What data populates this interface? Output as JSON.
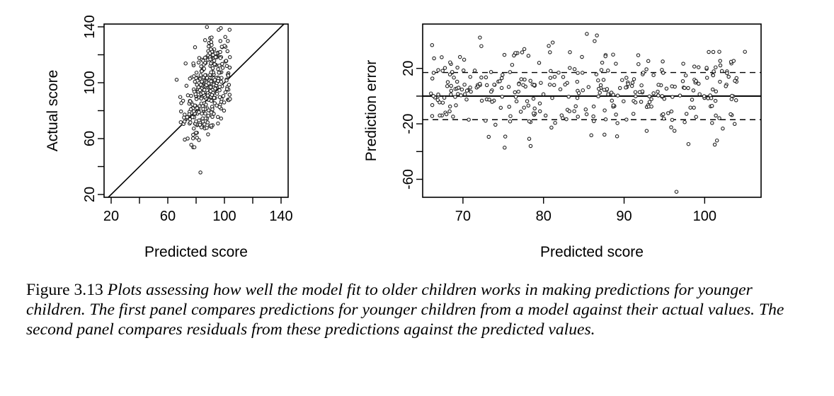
{
  "chart_data": [
    {
      "type": "scatter",
      "xlabel": "Predicted score",
      "ylabel": "Actual score",
      "xlim": [
        15,
        145
      ],
      "ylim": [
        18,
        142
      ],
      "xticks": [
        20,
        60,
        100,
        140
      ],
      "xticks_minor": [
        40,
        80,
        120
      ],
      "yticks": [
        20,
        60,
        100,
        140
      ],
      "yticks_minor": [
        40,
        80,
        120
      ],
      "reference_line": "y = x",
      "points_summary": {
        "n": 350,
        "x_range": [
          66,
          104
        ],
        "y_range": [
          25,
          140
        ],
        "center": [
          88,
          98
        ]
      }
    },
    {
      "type": "scatter",
      "xlabel": "Predicted score",
      "ylabel": "Prediction error",
      "xlim": [
        65,
        107
      ],
      "ylim": [
        -73,
        52
      ],
      "xticks": [
        70,
        80,
        90,
        100
      ],
      "yticks": [
        20,
        -20,
        -60
      ],
      "yticks_minor": [
        0,
        -40
      ],
      "hlines": [
        {
          "y": 0,
          "style": "solid"
        },
        {
          "y": 17,
          "style": "dashed"
        },
        {
          "y": -17,
          "style": "dashed"
        }
      ],
      "points_summary": {
        "n": 350,
        "x_range": [
          66,
          105
        ],
        "y_range": [
          -69,
          48
        ]
      }
    }
  ],
  "caption": {
    "label": "Figure 3.13 ",
    "text": "Plots assessing how well the model fit to older children works in making predictions for younger children. The first panel compares predictions for younger children from a model against their actual values. The second panel compares residuals from these predictions against the predicted values."
  }
}
